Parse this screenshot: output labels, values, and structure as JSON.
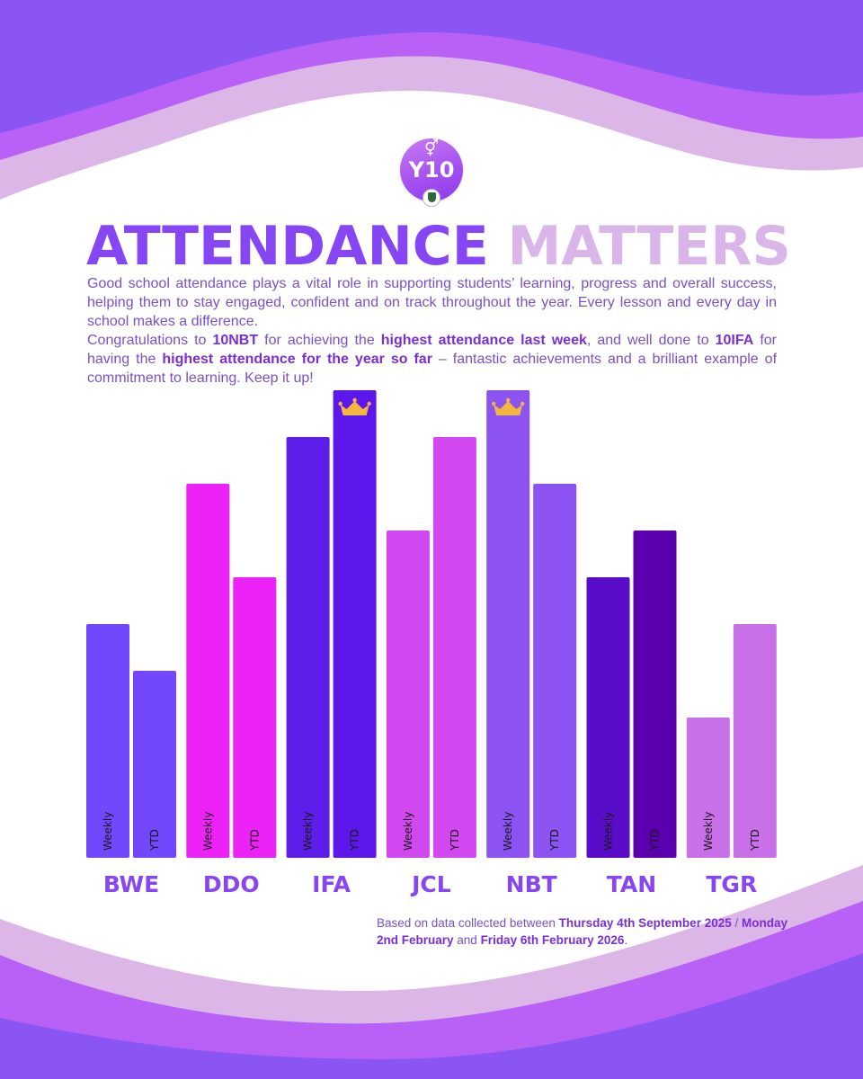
{
  "header": {
    "badge_symbol": "⚥",
    "badge_label": "Y10",
    "title_part1": "ATTENDANCE",
    "title_part2": "MATTERS"
  },
  "intro": {
    "p1": "Good school attendance plays a vital role in supporting students’ learning, progress and overall success, helping them to stay engaged, confident and on track throughout the year. Every lesson and every day in school makes a difference.",
    "p2_a": "Congratulations to ",
    "p2_b": "10NBT",
    "p2_c": " for achieving the ",
    "p2_d": "highest attendance last week",
    "p2_e": ", and well done to ",
    "p2_f": "10IFA",
    "p2_g": " for having the ",
    "p2_h": "highest attendance for the year so far",
    "p2_i": " – fantastic achievements and a brilliant example of commitment to learning. Keep it up!"
  },
  "footer": {
    "n1": "Based on data collected between ",
    "n2": "Thursday 4th September 2025",
    "n3": " / ",
    "n4": "Monday 2nd February",
    "n5": " and ",
    "n6": "Friday 6th February 2026",
    "n7": "."
  },
  "chart_data": {
    "type": "bar",
    "title": "ATTENDANCE MATTERS",
    "xlabel": "",
    "ylabel": "",
    "ylim": [
      0,
      10
    ],
    "value_note": "relative rank level read from bar heights; no numeric axis shown",
    "categories": [
      "BWE",
      "DDO",
      "IFA",
      "JCL",
      "NBT",
      "TAN",
      "TGR"
    ],
    "series": [
      {
        "name": "Weekly",
        "values": [
          5,
          8,
          9,
          7,
          10,
          6,
          3
        ]
      },
      {
        "name": "YTD",
        "values": [
          4,
          6,
          10,
          9,
          8,
          7,
          5
        ]
      }
    ],
    "colors": {
      "Weekly": [
        "#7347fb",
        "#ed22f6",
        "#5c1ee8",
        "#d148f0",
        "#8c52f2",
        "#5a0dc9",
        "#c870e7"
      ],
      "YTD": [
        "#7347fb",
        "#ed22f6",
        "#5c18eb",
        "#d148f0",
        "#8c52f2",
        "#5a00ae",
        "#c870e7"
      ]
    },
    "highlights": [
      {
        "category": "IFA",
        "series": "YTD",
        "icon": "crown-icon"
      },
      {
        "category": "NBT",
        "series": "Weekly",
        "icon": "crown-icon"
      }
    ]
  },
  "theme": {
    "wave_dark": "#8a55f2",
    "wave_mid": "#b960f7",
    "wave_light": "#dcb6e6",
    "title_primary": "#8746f3",
    "title_secondary": "#d9b5ea",
    "crown": "#f3b63f"
  }
}
